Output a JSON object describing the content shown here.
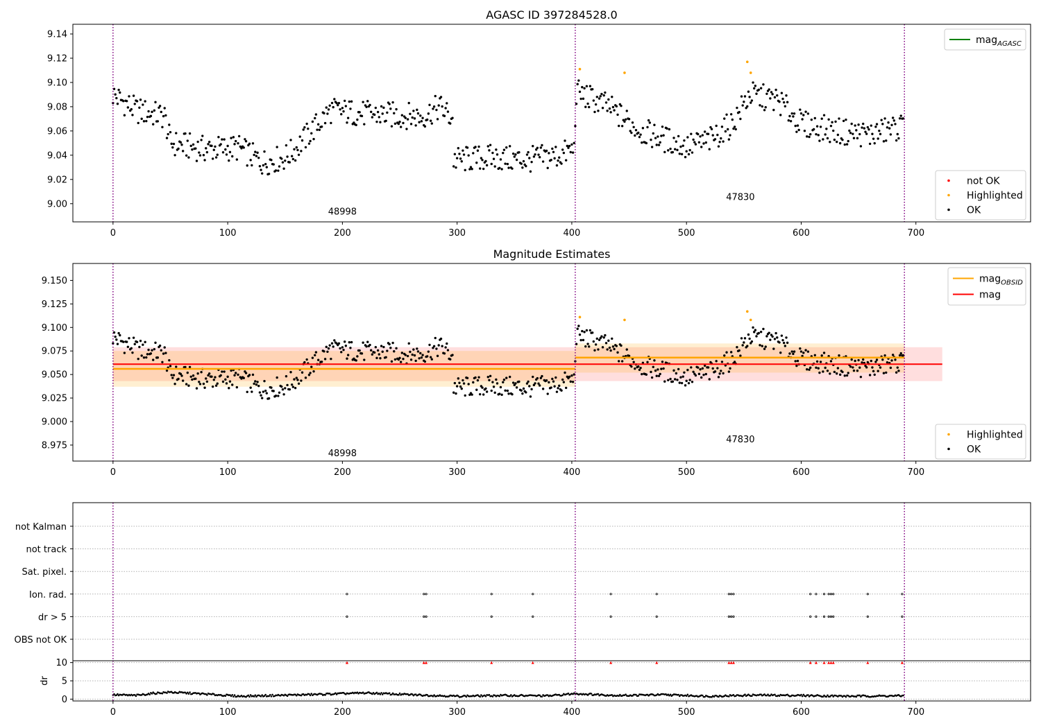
{
  "colors": {
    "ok": "#000000",
    "highlighted": "#ffa500",
    "not_ok": "#ff0000",
    "mag_agasc_line": "#008000",
    "mag_obsid_line": "#ffa500",
    "mag_line": "#ff0000",
    "obs_boundary": "#800080",
    "grid": "#b0b0b0"
  },
  "chart_data": [
    {
      "type": "scatter",
      "title": "AGASC ID 397284528.0",
      "xlim": [
        -35,
        800
      ],
      "ylim": [
        8.985,
        9.148
      ],
      "xticks": [
        0,
        100,
        200,
        300,
        400,
        500,
        600,
        700
      ],
      "yticks": [
        9.0,
        9.02,
        9.04,
        9.06,
        9.08,
        9.1,
        9.12,
        9.14
      ],
      "ytick_labels": [
        "9.00",
        "9.02",
        "9.04",
        "9.06",
        "9.08",
        "9.10",
        "9.12",
        "9.14"
      ],
      "obs_boundaries": [
        0,
        403,
        690
      ],
      "obsid_labels": [
        {
          "x": 200,
          "y": 8.991,
          "text": "48998"
        },
        {
          "x": 547,
          "y": 9.003,
          "text": "47830"
        }
      ],
      "legend_top": {
        "placement": "top-right",
        "entries": [
          {
            "label": "mag",
            "subscript": "AGASC",
            "kind": "line",
            "color": "#008000"
          }
        ]
      },
      "legend_bottom": {
        "placement": "bottom-right",
        "entries": [
          {
            "label": "not OK",
            "kind": "dot",
            "color": "#ff0000"
          },
          {
            "label": "Highlighted",
            "kind": "dot",
            "color": "#ffa500"
          },
          {
            "label": "OK",
            "kind": "dot",
            "color": "#000000"
          }
        ]
      },
      "series": {
        "ok_trend": [
          [
            0,
            9.09
          ],
          [
            20,
            9.077
          ],
          [
            45,
            9.072
          ],
          [
            50,
            9.05
          ],
          [
            80,
            9.045
          ],
          [
            110,
            9.046
          ],
          [
            130,
            9.034
          ],
          [
            150,
            9.038
          ],
          [
            160,
            9.046
          ],
          [
            175,
            9.062
          ],
          [
            190,
            9.077
          ],
          [
            220,
            9.074
          ],
          [
            270,
            9.072
          ],
          [
            285,
            9.08
          ],
          [
            296,
            9.07
          ],
          [
            297,
            9.036
          ],
          [
            330,
            9.038
          ],
          [
            360,
            9.036
          ],
          [
            390,
            9.04
          ],
          [
            402,
            9.045
          ],
          [
            404,
            9.092
          ],
          [
            430,
            9.081
          ],
          [
            460,
            9.06
          ],
          [
            500,
            9.047
          ],
          [
            520,
            9.052
          ],
          [
            540,
            9.066
          ],
          [
            555,
            9.09
          ],
          [
            580,
            9.085
          ],
          [
            600,
            9.066
          ],
          [
            630,
            9.06
          ],
          [
            660,
            9.057
          ],
          [
            689,
            9.064
          ]
        ],
        "highlighted": [
          [
            407,
            9.111
          ],
          [
            446,
            9.108
          ],
          [
            553,
            9.117
          ],
          [
            556,
            9.108
          ]
        ]
      }
    },
    {
      "type": "scatter",
      "title": "Magnitude Estimates",
      "xlim": [
        -35,
        800
      ],
      "ylim": [
        8.958,
        9.168
      ],
      "xticks": [
        0,
        100,
        200,
        300,
        400,
        500,
        600,
        700
      ],
      "yticks": [
        8.975,
        9.0,
        9.025,
        9.05,
        9.075,
        9.1,
        9.125,
        9.15
      ],
      "ytick_labels": [
        "8.975",
        "9.000",
        "9.025",
        "9.050",
        "9.075",
        "9.100",
        "9.125",
        "9.150"
      ],
      "obs_boundaries": [
        0,
        403,
        690
      ],
      "obsid_labels": [
        {
          "x": 200,
          "y": 8.963,
          "text": "48998"
        },
        {
          "x": 547,
          "y": 8.978,
          "text": "47830"
        }
      ],
      "legend_top": {
        "placement": "top-right",
        "entries": [
          {
            "label": "mag",
            "subscript": "OBSID",
            "kind": "line",
            "color": "#ffa500"
          },
          {
            "label": "mag",
            "subscript": "",
            "kind": "line",
            "color": "#ff0000"
          }
        ]
      },
      "legend_bottom": {
        "placement": "bottom-right",
        "entries": [
          {
            "label": "Highlighted",
            "kind": "dot",
            "color": "#ffa500"
          },
          {
            "label": "OK",
            "kind": "dot",
            "color": "#000000"
          }
        ]
      },
      "mag_overall": {
        "value": 9.061,
        "band": [
          9.043,
          9.079
        ],
        "x_range": [
          0,
          723
        ]
      },
      "mag_obsid": [
        {
          "x_range": [
            0,
            403
          ],
          "value": 9.056,
          "band": [
            9.037,
            9.075
          ]
        },
        {
          "x_range": [
            403,
            690
          ],
          "value": 9.068,
          "band": [
            9.052,
            9.083
          ]
        }
      ]
    },
    {
      "type": "scatter",
      "xlim": [
        -35,
        800
      ],
      "categories": [
        "not Kalman",
        "not track",
        "Sat. pixel.",
        "Ion. rad.",
        "dr > 5",
        "OBS not OK"
      ],
      "flag_positions": {
        "Ion. rad.": [
          204,
          271,
          273,
          330,
          366,
          434,
          474,
          537,
          539,
          541,
          608,
          613,
          620,
          624,
          626,
          628,
          658,
          688
        ],
        "dr > 5": [
          204,
          271,
          273,
          330,
          366,
          434,
          474,
          537,
          539,
          541,
          608,
          613,
          620,
          624,
          626,
          628,
          658,
          688
        ]
      },
      "obs_boundaries": [
        0,
        403,
        690
      ]
    },
    {
      "type": "scatter",
      "ylabel": "dr",
      "xlim": [
        -35,
        800
      ],
      "ylim": [
        -0.5,
        10.5
      ],
      "xticks": [
        0,
        100,
        200,
        300,
        400,
        500,
        600,
        700
      ],
      "yticks": [
        0,
        5,
        10
      ],
      "ytick_labels": [
        "0",
        "5",
        "10"
      ],
      "dr_high_markers": [
        204,
        271,
        273,
        330,
        366,
        434,
        474,
        537,
        539,
        541,
        608,
        613,
        620,
        624,
        626,
        628,
        658,
        688
      ],
      "dr_trend": [
        [
          0,
          1.2
        ],
        [
          20,
          1.0
        ],
        [
          35,
          1.6
        ],
        [
          50,
          1.9
        ],
        [
          80,
          1.4
        ],
        [
          110,
          0.8
        ],
        [
          140,
          1.0
        ],
        [
          180,
          1.3
        ],
        [
          220,
          1.7
        ],
        [
          260,
          1.2
        ],
        [
          300,
          0.8
        ],
        [
          340,
          1.0
        ],
        [
          380,
          0.9
        ],
        [
          403,
          1.5
        ],
        [
          440,
          1.0
        ],
        [
          480,
          1.2
        ],
        [
          520,
          0.8
        ],
        [
          560,
          1.1
        ],
        [
          600,
          1.0
        ],
        [
          640,
          0.8
        ],
        [
          689,
          0.9
        ]
      ],
      "obs_boundaries": [
        0,
        403,
        690
      ]
    }
  ]
}
